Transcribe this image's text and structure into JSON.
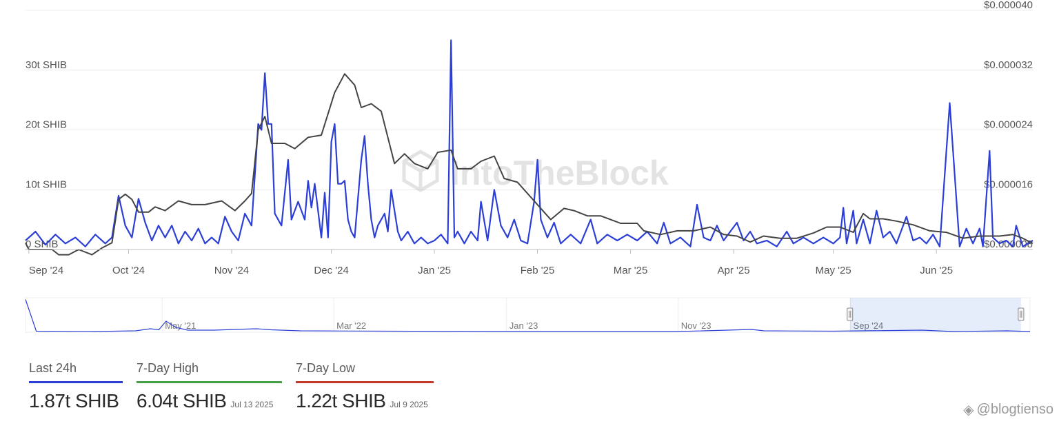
{
  "chart_data": {
    "type": "line",
    "watermark": "IntoTheBlock",
    "x_ticks": [
      "Sep '24",
      "Oct '24",
      "Nov '24",
      "Dec '24",
      "Jan '25",
      "Feb '25",
      "Mar '25",
      "Apr '25",
      "May '25",
      "Jun '25"
    ],
    "x_range": [
      "2024-08-31",
      "2025-06-30"
    ],
    "y_left": {
      "ticks": [
        "0 SHIB",
        "10t SHIB",
        "20t SHIB",
        "30t SHIB"
      ],
      "range": [
        0,
        40
      ],
      "unit": "t SHIB"
    },
    "y_right": {
      "ticks": [
        "$0.000008",
        "$0.000016",
        "$0.000024",
        "$0.000032",
        "$0.000040"
      ],
      "range": [
        8e-06,
        4e-05
      ]
    },
    "grid": true,
    "series": [
      {
        "axis": "left",
        "color": "#2b3fd6",
        "points": [
          [
            "2024-08-31",
            1.5
          ],
          [
            "2024-09-03",
            3.0
          ],
          [
            "2024-09-06",
            0.8
          ],
          [
            "2024-09-09",
            2.5
          ],
          [
            "2024-09-12",
            1.0
          ],
          [
            "2024-09-15",
            2.0
          ],
          [
            "2024-09-18",
            0.5
          ],
          [
            "2024-09-21",
            2.5
          ],
          [
            "2024-09-24",
            1.0
          ],
          [
            "2024-09-26",
            2.0
          ],
          [
            "2024-09-28",
            9.0
          ],
          [
            "2024-09-30",
            4.0
          ],
          [
            "2024-10-02",
            2.0
          ],
          [
            "2024-10-04",
            8.5
          ],
          [
            "2024-10-06",
            4.5
          ],
          [
            "2024-10-08",
            1.5
          ],
          [
            "2024-10-10",
            4.0
          ],
          [
            "2024-10-12",
            2.0
          ],
          [
            "2024-10-14",
            4.0
          ],
          [
            "2024-10-16",
            1.0
          ],
          [
            "2024-10-18",
            3.0
          ],
          [
            "2024-10-20",
            1.5
          ],
          [
            "2024-10-22",
            3.5
          ],
          [
            "2024-10-24",
            1.0
          ],
          [
            "2024-10-26",
            2.0
          ],
          [
            "2024-10-28",
            1.0
          ],
          [
            "2024-10-30",
            5.5
          ],
          [
            "2024-11-01",
            3.0
          ],
          [
            "2024-11-03",
            1.5
          ],
          [
            "2024-11-05",
            6.0
          ],
          [
            "2024-11-07",
            4.0
          ],
          [
            "2024-11-09",
            21.0
          ],
          [
            "2024-11-10",
            20.0
          ],
          [
            "2024-11-11",
            29.5
          ],
          [
            "2024-11-12",
            21.0
          ],
          [
            "2024-11-13",
            21.0
          ],
          [
            "2024-11-14",
            6.0
          ],
          [
            "2024-11-16",
            4.0
          ],
          [
            "2024-11-18",
            15.0
          ],
          [
            "2024-11-19",
            5.0
          ],
          [
            "2024-11-21",
            8.0
          ],
          [
            "2024-11-23",
            5.0
          ],
          [
            "2024-11-24",
            11.5
          ],
          [
            "2024-11-25",
            7.0
          ],
          [
            "2024-11-26",
            11.0
          ],
          [
            "2024-11-28",
            2.0
          ],
          [
            "2024-11-29",
            9.5
          ],
          [
            "2024-11-30",
            2.0
          ],
          [
            "2024-12-01",
            18.0
          ],
          [
            "2024-12-02",
            21.0
          ],
          [
            "2024-12-03",
            11.0
          ],
          [
            "2024-12-04",
            11.0
          ],
          [
            "2024-12-05",
            11.5
          ],
          [
            "2024-12-06",
            5.0
          ],
          [
            "2024-12-07",
            3.0
          ],
          [
            "2024-12-08",
            2.0
          ],
          [
            "2024-12-10",
            15.0
          ],
          [
            "2024-12-11",
            19.0
          ],
          [
            "2024-12-12",
            11.0
          ],
          [
            "2024-12-13",
            5.0
          ],
          [
            "2024-12-14",
            2.0
          ],
          [
            "2024-12-15",
            4.0
          ],
          [
            "2024-12-17",
            6.0
          ],
          [
            "2024-12-18",
            3.0
          ],
          [
            "2024-12-19",
            10.0
          ],
          [
            "2024-12-21",
            3.0
          ],
          [
            "2024-12-22",
            1.5
          ],
          [
            "2024-12-24",
            3.0
          ],
          [
            "2024-12-26",
            1.0
          ],
          [
            "2024-12-28",
            2.0
          ],
          [
            "2024-12-30",
            1.0
          ],
          [
            "2025-01-01",
            1.5
          ],
          [
            "2025-01-03",
            2.5
          ],
          [
            "2025-01-05",
            1.0
          ],
          [
            "2025-01-06",
            35.0
          ],
          [
            "2025-01-07",
            2.0
          ],
          [
            "2025-01-08",
            3.0
          ],
          [
            "2025-01-10",
            1.0
          ],
          [
            "2025-01-12",
            3.0
          ],
          [
            "2025-01-14",
            1.5
          ],
          [
            "2025-01-15",
            8.0
          ],
          [
            "2025-01-17",
            1.5
          ],
          [
            "2025-01-19",
            10.0
          ],
          [
            "2025-01-21",
            4.0
          ],
          [
            "2025-01-23",
            2.0
          ],
          [
            "2025-01-25",
            5.0
          ],
          [
            "2025-01-27",
            1.5
          ],
          [
            "2025-01-29",
            1.0
          ],
          [
            "2025-01-31",
            8.0
          ],
          [
            "2025-02-01",
            15.0
          ],
          [
            "2025-02-02",
            5.0
          ],
          [
            "2025-02-04",
            2.0
          ],
          [
            "2025-02-06",
            4.5
          ],
          [
            "2025-02-08",
            1.0
          ],
          [
            "2025-02-11",
            2.5
          ],
          [
            "2025-02-14",
            1.0
          ],
          [
            "2025-02-17",
            5.0
          ],
          [
            "2025-02-19",
            1.0
          ],
          [
            "2025-02-22",
            2.5
          ],
          [
            "2025-02-25",
            1.5
          ],
          [
            "2025-02-28",
            2.5
          ],
          [
            "2025-03-03",
            1.5
          ],
          [
            "2025-03-06",
            3.0
          ],
          [
            "2025-03-09",
            1.0
          ],
          [
            "2025-03-11",
            4.5
          ],
          [
            "2025-03-13",
            1.0
          ],
          [
            "2025-03-16",
            2.0
          ],
          [
            "2025-03-19",
            0.5
          ],
          [
            "2025-03-21",
            7.5
          ],
          [
            "2025-03-23",
            2.0
          ],
          [
            "2025-03-25",
            1.5
          ],
          [
            "2025-03-27",
            4.0
          ],
          [
            "2025-03-29",
            1.5
          ],
          [
            "2025-03-31",
            3.0
          ],
          [
            "2025-04-02",
            4.5
          ],
          [
            "2025-04-04",
            1.5
          ],
          [
            "2025-04-06",
            3.0
          ],
          [
            "2025-04-08",
            1.0
          ],
          [
            "2025-04-11",
            1.5
          ],
          [
            "2025-04-14",
            0.5
          ],
          [
            "2025-04-17",
            3.0
          ],
          [
            "2025-04-19",
            1.0
          ],
          [
            "2025-04-22",
            2.0
          ],
          [
            "2025-04-25",
            1.0
          ],
          [
            "2025-04-28",
            2.0
          ],
          [
            "2025-05-01",
            1.0
          ],
          [
            "2025-05-03",
            2.0
          ],
          [
            "2025-05-04",
            7.0
          ],
          [
            "2025-05-05",
            1.0
          ],
          [
            "2025-05-07",
            6.5
          ],
          [
            "2025-05-08",
            1.0
          ],
          [
            "2025-05-10",
            5.0
          ],
          [
            "2025-05-12",
            1.0
          ],
          [
            "2025-05-14",
            6.5
          ],
          [
            "2025-05-16",
            2.0
          ],
          [
            "2025-05-18",
            3.0
          ],
          [
            "2025-05-20",
            1.0
          ],
          [
            "2025-05-23",
            5.5
          ],
          [
            "2025-05-25",
            1.5
          ],
          [
            "2025-05-27",
            2.0
          ],
          [
            "2025-05-29",
            1.0
          ],
          [
            "2025-05-31",
            2.5
          ],
          [
            "2025-06-02",
            0.5
          ],
          [
            "2025-06-05",
            24.5
          ],
          [
            "2025-06-08",
            0.5
          ],
          [
            "2025-06-10",
            3.5
          ],
          [
            "2025-06-12",
            1.0
          ],
          [
            "2025-06-14",
            3.5
          ],
          [
            "2025-06-15",
            0.5
          ],
          [
            "2025-06-17",
            16.5
          ],
          [
            "2025-06-18",
            2.0
          ],
          [
            "2025-06-20",
            1.0
          ],
          [
            "2025-06-22",
            1.5
          ],
          [
            "2025-06-24",
            0.5
          ],
          [
            "2025-06-25",
            4.0
          ],
          [
            "2025-06-27",
            0.5
          ],
          [
            "2025-06-30",
            1.5
          ]
        ]
      },
      {
        "axis": "right",
        "color": "#444444",
        "points": [
          [
            "2024-08-31",
            8.9e-06
          ],
          [
            "2024-09-01",
            8e-06
          ],
          [
            "2024-09-08",
            8e-06
          ],
          [
            "2024-09-10",
            7.3e-06
          ],
          [
            "2024-09-13",
            7.3e-06
          ],
          [
            "2024-09-16",
            8e-06
          ],
          [
            "2024-09-20",
            7.3e-06
          ],
          [
            "2024-09-23",
            8.2e-06
          ],
          [
            "2024-09-26",
            8.9e-06
          ],
          [
            "2024-09-28",
            1.47e-05
          ],
          [
            "2024-09-30",
            1.54e-05
          ],
          [
            "2024-10-02",
            1.47e-05
          ],
          [
            "2024-10-04",
            1.3e-05
          ],
          [
            "2024-10-07",
            1.3e-05
          ],
          [
            "2024-10-09",
            1.37e-05
          ],
          [
            "2024-10-12",
            1.32e-05
          ],
          [
            "2024-10-16",
            1.45e-05
          ],
          [
            "2024-10-20",
            1.4e-05
          ],
          [
            "2024-10-24",
            1.4e-05
          ],
          [
            "2024-10-29",
            1.45e-05
          ],
          [
            "2024-11-02",
            1.32e-05
          ],
          [
            "2024-11-05",
            1.45e-05
          ],
          [
            "2024-11-07",
            1.55e-05
          ],
          [
            "2024-11-09",
            2.4e-05
          ],
          [
            "2024-11-11",
            2.58e-05
          ],
          [
            "2024-11-13",
            2.22e-05
          ],
          [
            "2024-11-17",
            2.22e-05
          ],
          [
            "2024-11-20",
            2.15e-05
          ],
          [
            "2024-11-24",
            2.3e-05
          ],
          [
            "2024-11-28",
            2.33e-05
          ],
          [
            "2024-12-02",
            2.9e-05
          ],
          [
            "2024-12-05",
            3.15e-05
          ],
          [
            "2024-12-08",
            3e-05
          ],
          [
            "2024-12-10",
            2.7e-05
          ],
          [
            "2024-12-13",
            2.75e-05
          ],
          [
            "2024-12-16",
            2.65e-05
          ],
          [
            "2024-12-20",
            1.95e-05
          ],
          [
            "2024-12-23",
            2.08e-05
          ],
          [
            "2024-12-26",
            1.95e-05
          ],
          [
            "2024-12-30",
            1.88e-05
          ],
          [
            "2025-01-02",
            2.1e-05
          ],
          [
            "2025-01-06",
            2.13e-05
          ],
          [
            "2025-01-08",
            1.88e-05
          ],
          [
            "2025-01-12",
            1.88e-05
          ],
          [
            "2025-01-15",
            1.98e-05
          ],
          [
            "2025-01-19",
            2.05e-05
          ],
          [
            "2025-01-22",
            1.75e-05
          ],
          [
            "2025-01-26",
            1.7e-05
          ],
          [
            "2025-01-30",
            1.5e-05
          ],
          [
            "2025-02-02",
            1.35e-05
          ],
          [
            "2025-02-05",
            1.2e-05
          ],
          [
            "2025-02-09",
            1.35e-05
          ],
          [
            "2025-02-12",
            1.32e-05
          ],
          [
            "2025-02-16",
            1.25e-05
          ],
          [
            "2025-02-20",
            1.25e-05
          ],
          [
            "2025-02-23",
            1.2e-05
          ],
          [
            "2025-02-26",
            1.15e-05
          ],
          [
            "2025-03-03",
            1.15e-05
          ],
          [
            "2025-03-05",
            1.05e-05
          ],
          [
            "2025-03-10",
            1e-05
          ],
          [
            "2025-03-15",
            1.05e-05
          ],
          [
            "2025-03-20",
            1.05e-05
          ],
          [
            "2025-03-25",
            1.1e-05
          ],
          [
            "2025-03-29",
            1e-05
          ],
          [
            "2025-04-02",
            9.8e-06
          ],
          [
            "2025-04-06",
            9e-06
          ],
          [
            "2025-04-10",
            9.8e-06
          ],
          [
            "2025-04-15",
            9.5e-06
          ],
          [
            "2025-04-20",
            9.5e-06
          ],
          [
            "2025-04-25",
            1.02e-05
          ],
          [
            "2025-04-29",
            1.1e-05
          ],
          [
            "2025-05-03",
            1.1e-05
          ],
          [
            "2025-05-07",
            1.03e-05
          ],
          [
            "2025-05-10",
            1.28e-05
          ],
          [
            "2025-05-12",
            1.21e-05
          ],
          [
            "2025-05-16",
            1.21e-05
          ],
          [
            "2025-05-20",
            1.18e-05
          ],
          [
            "2025-05-25",
            1.13e-05
          ],
          [
            "2025-05-30",
            1.05e-05
          ],
          [
            "2025-06-04",
            1.03e-05
          ],
          [
            "2025-06-09",
            9.5e-06
          ],
          [
            "2025-06-14",
            9.8e-06
          ],
          [
            "2025-06-20",
            9.8e-06
          ],
          [
            "2025-06-24",
            1e-05
          ],
          [
            "2025-06-27",
            9.5e-06
          ],
          [
            "2025-06-30",
            8.8e-06
          ]
        ]
      }
    ],
    "navigator": {
      "x_ticks": [
        "May '21",
        "Mar '22",
        "Jan '23",
        "Nov '23",
        "Sep '24"
      ],
      "x_range": [
        "2020-09-01",
        "2025-07-16"
      ],
      "selection": [
        "2024-08-31",
        "2025-06-30"
      ],
      "points": [
        [
          "2020-09-01",
          95
        ],
        [
          "2020-09-20",
          3
        ],
        [
          "2021-01-01",
          2
        ],
        [
          "2021-03-15",
          4
        ],
        [
          "2021-04-10",
          10
        ],
        [
          "2021-04-25",
          7
        ],
        [
          "2021-05-08",
          32
        ],
        [
          "2021-05-25",
          14
        ],
        [
          "2021-06-15",
          6
        ],
        [
          "2021-08-01",
          6
        ],
        [
          "2021-10-15",
          10
        ],
        [
          "2021-11-10",
          7
        ],
        [
          "2022-01-01",
          4
        ],
        [
          "2022-06-01",
          3
        ],
        [
          "2022-12-01",
          2
        ],
        [
          "2023-06-01",
          2
        ],
        [
          "2023-11-01",
          2
        ],
        [
          "2024-03-10",
          8
        ],
        [
          "2024-04-01",
          4
        ],
        [
          "2024-08-01",
          3
        ],
        [
          "2024-11-15",
          5
        ],
        [
          "2025-01-06",
          6
        ],
        [
          "2025-03-01",
          2
        ],
        [
          "2025-06-05",
          4
        ],
        [
          "2025-07-16",
          2
        ]
      ]
    }
  },
  "stats": [
    {
      "label": "Last 24h",
      "value": "1.87t SHIB",
      "date": "",
      "color": "#2b3fd6"
    },
    {
      "label": "7-Day High",
      "value": "6.04t SHIB",
      "date": "Jul 13 2025",
      "color": "#43a047"
    },
    {
      "label": "7-Day Low",
      "value": "1.22t SHIB",
      "date": "Jul 9 2025",
      "color": "#c0392b"
    }
  ],
  "source_credit": "@blogtienso"
}
